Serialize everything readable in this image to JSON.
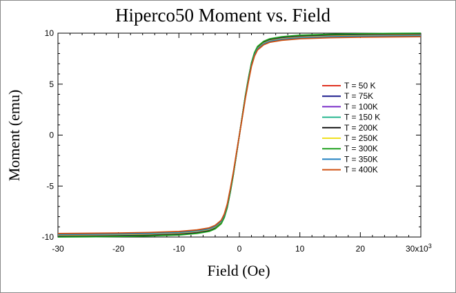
{
  "chart_data": {
    "type": "line",
    "title": "Hiperco50 Moment vs. Field",
    "xlabel": "Field (Oe)",
    "ylabel": "Moment (emu)",
    "xlim": [
      -30000,
      30000
    ],
    "ylim": [
      -10,
      10
    ],
    "x_ticks": [
      -30000,
      -20000,
      -10000,
      0,
      10000,
      20000,
      30000
    ],
    "x_tick_labels": [
      "-30",
      "-20",
      "-10",
      "0",
      "10",
      "20",
      "30x10"
    ],
    "x_tick_exponent": "3",
    "y_ticks": [
      -10,
      -5,
      0,
      5,
      10
    ],
    "y_tick_labels": [
      "-10",
      "-5",
      "0",
      "5",
      "10"
    ],
    "grid": false,
    "legend_position": "right",
    "x": [
      -30000,
      -25000,
      -20000,
      -15000,
      -10000,
      -7000,
      -5000,
      -4000,
      -3000,
      -2500,
      -2000,
      -1500,
      -1000,
      -500,
      0,
      500,
      1000,
      1500,
      2000,
      2500,
      3000,
      4000,
      5000,
      7000,
      10000,
      15000,
      20000,
      25000,
      30000
    ],
    "series": [
      {
        "name": "T = 50 K",
        "color": "#e03020",
        "values": [
          -9.9,
          -9.88,
          -9.85,
          -9.8,
          -9.7,
          -9.55,
          -9.35,
          -9.1,
          -8.6,
          -8.0,
          -7.0,
          -5.5,
          -3.8,
          -1.9,
          0.0,
          1.9,
          3.8,
          5.5,
          7.0,
          8.0,
          8.6,
          9.1,
          9.35,
          9.55,
          9.7,
          9.8,
          9.85,
          9.88,
          9.9
        ]
      },
      {
        "name": "T = 75K",
        "color": "#1a1a8c",
        "values": [
          -9.92,
          -9.9,
          -9.87,
          -9.82,
          -9.72,
          -9.57,
          -9.37,
          -9.12,
          -8.62,
          -8.02,
          -7.02,
          -5.52,
          -3.82,
          -1.91,
          0.0,
          1.91,
          3.82,
          5.52,
          7.02,
          8.02,
          8.62,
          9.12,
          9.37,
          9.57,
          9.72,
          9.82,
          9.87,
          9.9,
          9.92
        ]
      },
      {
        "name": "T = 100K",
        "color": "#7a2ec8",
        "values": [
          -9.93,
          -9.91,
          -9.88,
          -9.83,
          -9.73,
          -9.58,
          -9.38,
          -9.13,
          -8.63,
          -8.03,
          -7.03,
          -5.53,
          -3.83,
          -1.92,
          0.0,
          1.92,
          3.83,
          5.53,
          7.03,
          8.03,
          8.63,
          9.13,
          9.38,
          9.58,
          9.73,
          9.83,
          9.88,
          9.91,
          9.93
        ]
      },
      {
        "name": "T = 150 K",
        "color": "#2ab890",
        "values": [
          -9.96,
          -9.94,
          -9.91,
          -9.86,
          -9.76,
          -9.61,
          -9.41,
          -9.16,
          -8.66,
          -8.06,
          -7.06,
          -5.56,
          -3.86,
          -1.93,
          0.0,
          1.93,
          3.86,
          5.56,
          7.06,
          8.06,
          8.66,
          9.16,
          9.41,
          9.61,
          9.76,
          9.86,
          9.91,
          9.94,
          9.96
        ]
      },
      {
        "name": "T = 200K",
        "color": "#111111",
        "values": [
          -9.95,
          -9.93,
          -9.9,
          -9.85,
          -9.75,
          -9.6,
          -9.4,
          -9.15,
          -8.65,
          -8.05,
          -7.05,
          -5.55,
          -3.85,
          -1.93,
          0.0,
          1.93,
          3.85,
          5.55,
          7.05,
          8.05,
          8.65,
          9.15,
          9.4,
          9.6,
          9.75,
          9.85,
          9.9,
          9.93,
          9.95
        ]
      },
      {
        "name": "T = 250K",
        "color": "#f0e020",
        "values": [
          -9.8,
          -9.78,
          -9.75,
          -9.7,
          -9.6,
          -9.45,
          -9.25,
          -9.0,
          -8.5,
          -7.9,
          -6.9,
          -5.4,
          -3.75,
          -1.88,
          0.0,
          1.88,
          3.75,
          5.4,
          6.9,
          7.9,
          8.5,
          9.0,
          9.25,
          9.45,
          9.6,
          9.7,
          9.75,
          9.78,
          9.8
        ]
      },
      {
        "name": "T = 300K",
        "color": "#20a020",
        "values": [
          -10.0,
          -9.98,
          -9.95,
          -9.9,
          -9.8,
          -9.65,
          -9.45,
          -9.2,
          -8.7,
          -8.1,
          -7.1,
          -5.6,
          -3.9,
          -1.95,
          0.0,
          1.95,
          3.9,
          5.6,
          7.1,
          8.1,
          8.7,
          9.2,
          9.45,
          9.65,
          9.8,
          9.9,
          9.95,
          9.98,
          10.0
        ]
      },
      {
        "name": "T = 350K",
        "color": "#2080c0",
        "values": [
          -9.75,
          -9.73,
          -9.7,
          -9.65,
          -9.55,
          -9.4,
          -9.2,
          -8.95,
          -8.45,
          -7.85,
          -6.85,
          -5.35,
          -3.7,
          -1.85,
          0.0,
          1.85,
          3.7,
          5.35,
          6.85,
          7.85,
          8.45,
          8.95,
          9.2,
          9.4,
          9.55,
          9.65,
          9.7,
          9.73,
          9.75
        ]
      },
      {
        "name": "T = 400K",
        "color": "#d05010",
        "values": [
          -9.65,
          -9.63,
          -9.6,
          -9.55,
          -9.45,
          -9.3,
          -9.1,
          -8.85,
          -8.35,
          -7.75,
          -6.75,
          -5.25,
          -3.65,
          -1.8,
          0.0,
          1.8,
          3.65,
          5.25,
          6.75,
          7.75,
          8.35,
          8.85,
          9.1,
          9.3,
          9.45,
          9.55,
          9.6,
          9.63,
          9.65
        ]
      }
    ]
  }
}
